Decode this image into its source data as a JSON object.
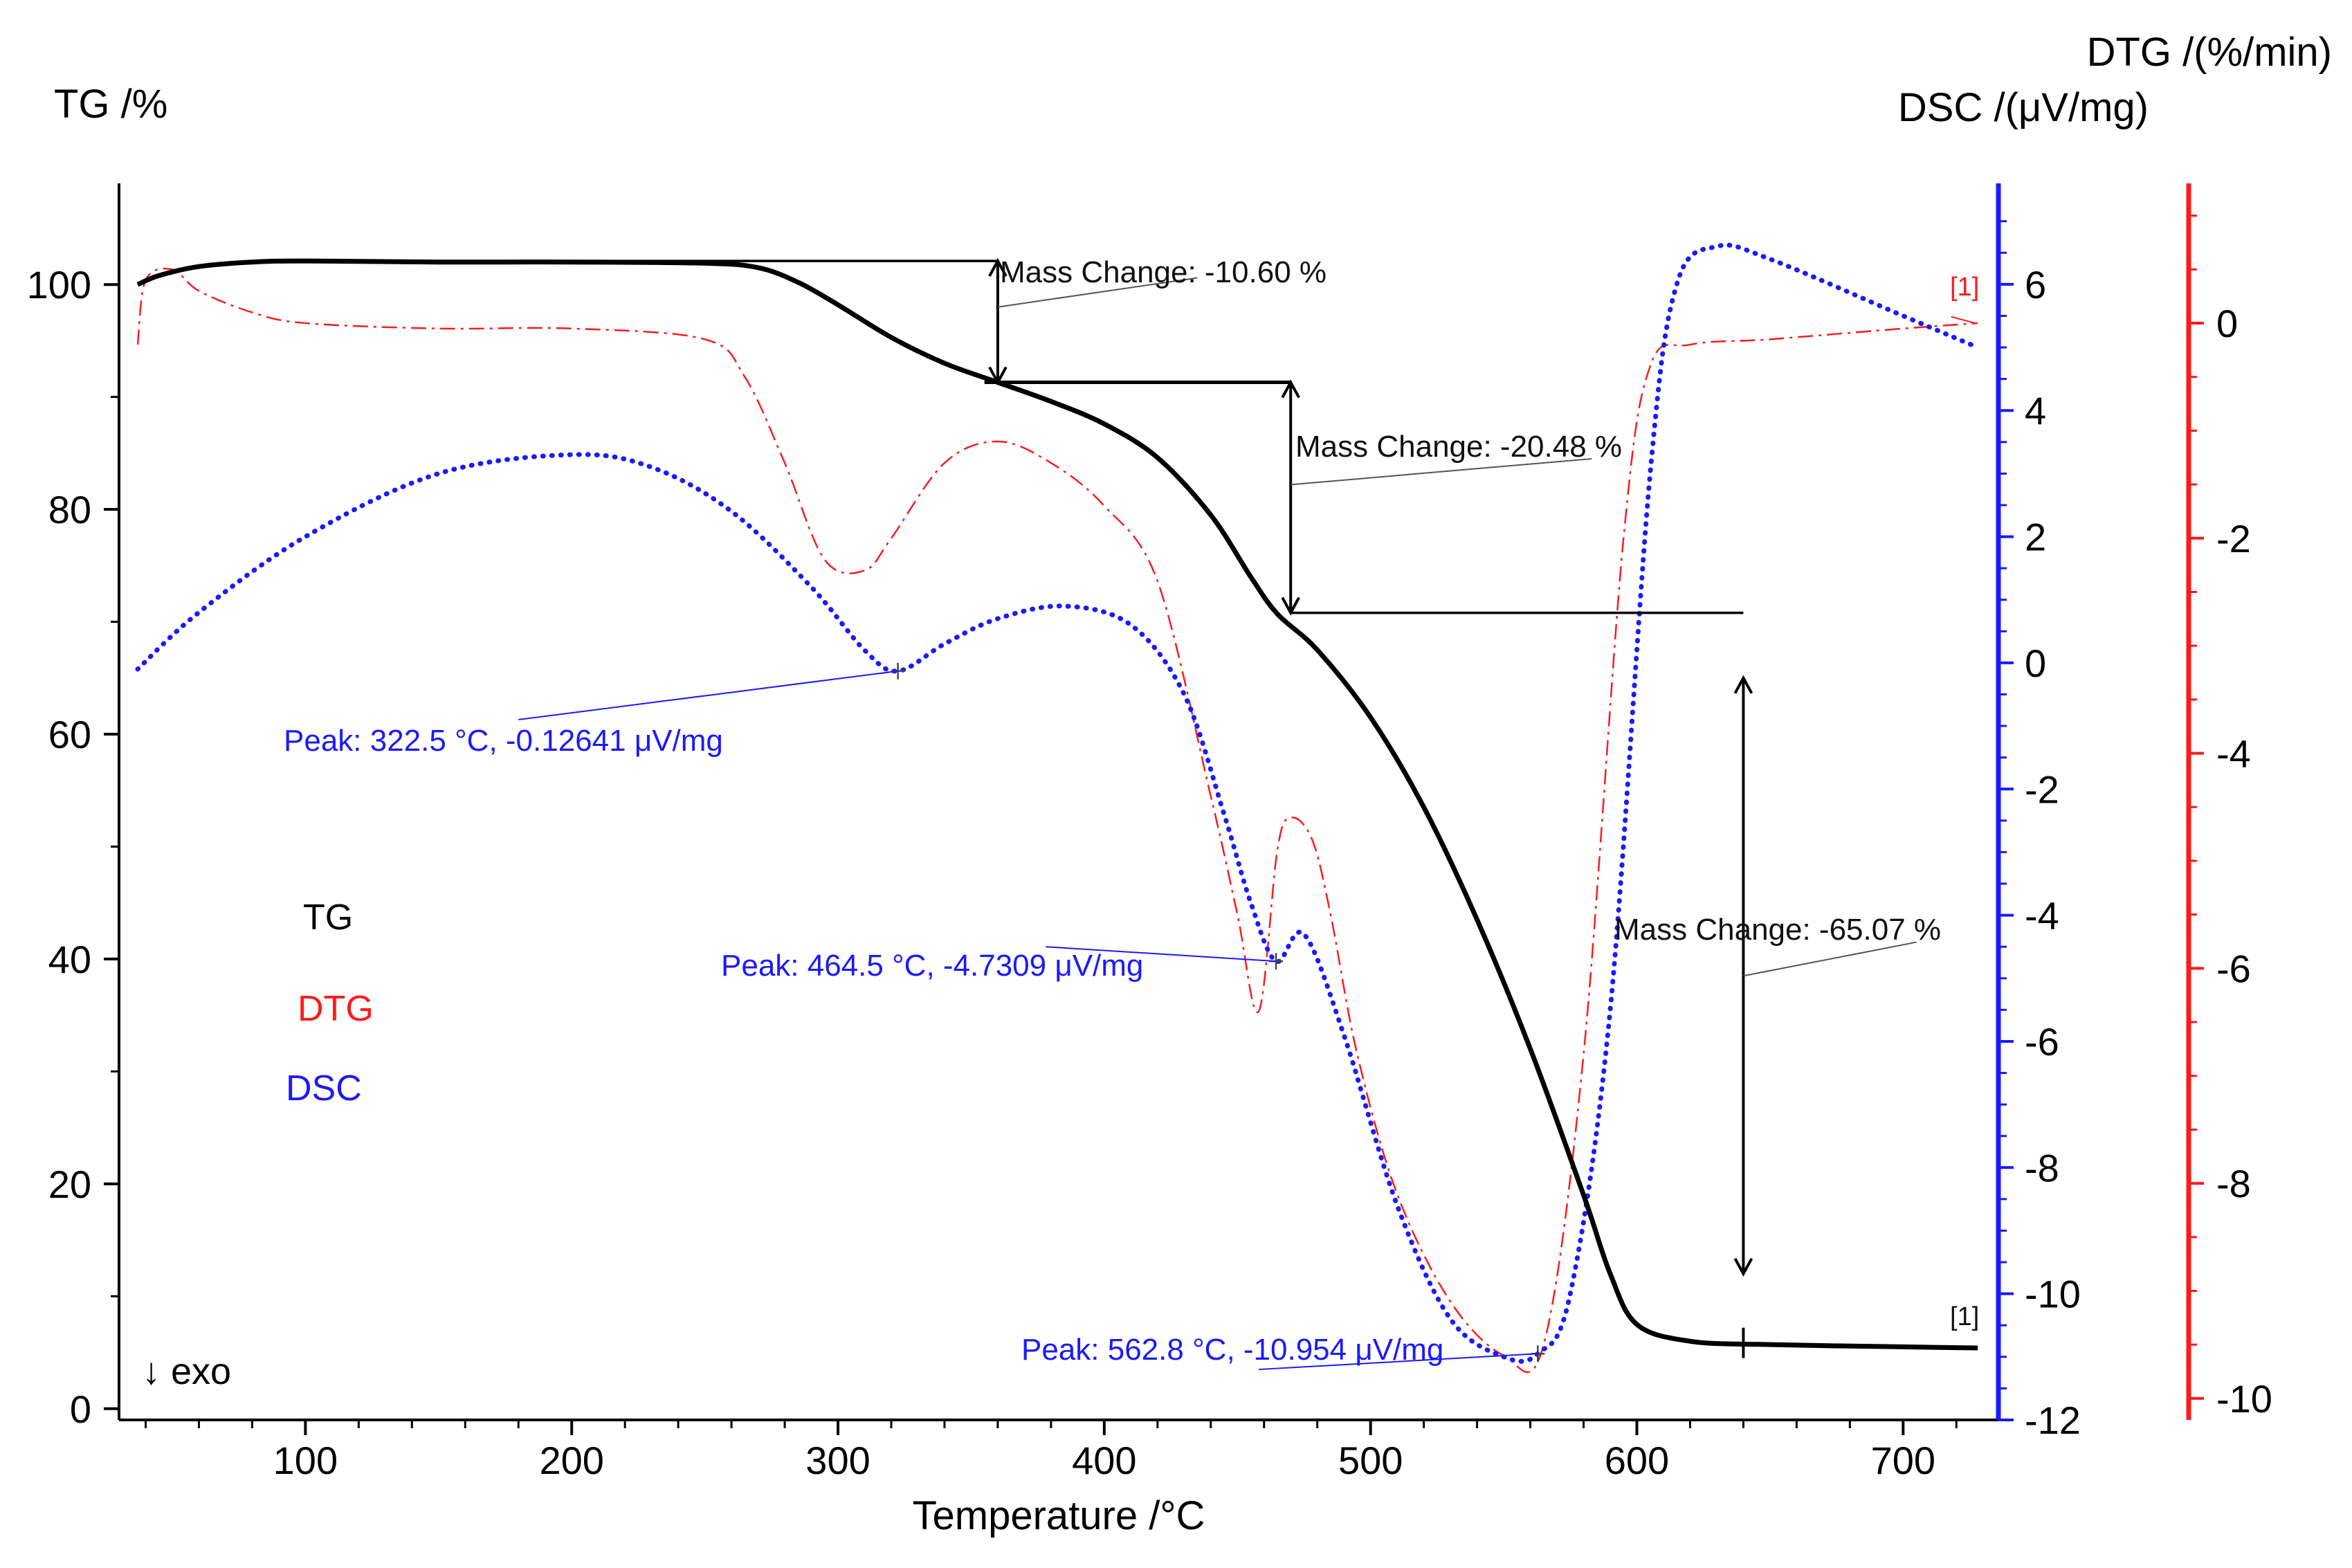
{
  "chart_data": {
    "type": "line",
    "xlabel": "Temperature /°C",
    "xlim": [
      30,
      735
    ],
    "x_ticks": [
      100,
      200,
      300,
      400,
      500,
      600,
      700
    ],
    "axes": {
      "tg": {
        "label": "TG /%",
        "range": [
          -1,
          109
        ],
        "ticks": [
          0,
          20,
          40,
          60,
          80,
          100
        ],
        "color": "#000000"
      },
      "dsc": {
        "label": "DSC /(μV/mg)",
        "range": [
          -12,
          7.6
        ],
        "ticks": [
          -12,
          -10,
          -8,
          -6,
          -4,
          -2,
          0,
          2,
          4,
          6
        ],
        "color": "#1a1aff"
      },
      "dtg": {
        "label": "DTG /(%/min)",
        "range": [
          -10.2,
          1.3
        ],
        "ticks": [
          -10,
          -8,
          -6,
          -4,
          -2,
          0
        ],
        "color": "#ff1a1a"
      }
    },
    "series": [
      {
        "name": "TG",
        "axis": "tg",
        "color": "#000000",
        "style": "solid",
        "x": [
          37,
          45,
          60,
          80,
          100,
          150,
          200,
          250,
          270,
          285,
          300,
          320,
          340,
          360,
          380,
          400,
          420,
          440,
          455,
          465,
          480,
          500,
          520,
          540,
          560,
          580,
          590,
          600,
          620,
          650,
          700,
          728
        ],
        "y": [
          100,
          100.8,
          101.6,
          102,
          102.1,
          102,
          102,
          101.9,
          101.5,
          100.2,
          98.2,
          95.3,
          93,
          91.3,
          89.6,
          87.6,
          84.6,
          79.5,
          74,
          70.7,
          67.5,
          61.5,
          53.5,
          43.5,
          32,
          19,
          12,
          7.5,
          6,
          5.7,
          5.5,
          5.4
        ]
      },
      {
        "name": "DTG",
        "axis": "dtg",
        "color": "#ff1a1a",
        "style": "dashdot",
        "x": [
          37,
          40,
          50,
          60,
          80,
          100,
          150,
          200,
          250,
          265,
          280,
          295,
          310,
          320,
          340,
          360,
          380,
          400,
          420,
          440,
          450,
          458,
          465,
          470,
          478,
          485,
          495,
          510,
          530,
          550,
          565,
          580,
          595,
          605,
          620,
          650,
          700,
          728
        ],
        "y": [
          -0.2,
          0.4,
          0.5,
          0.3,
          0.1,
          0,
          -0.05,
          -0.05,
          -0.15,
          -0.5,
          -1.3,
          -2.2,
          -2.3,
          -2.0,
          -1.3,
          -1.1,
          -1.3,
          -1.7,
          -2.4,
          -4.4,
          -5.5,
          -6.4,
          -4.9,
          -4.6,
          -4.8,
          -5.5,
          -6.8,
          -8.1,
          -9.1,
          -9.6,
          -9.5,
          -6.8,
          -2.0,
          -0.4,
          -0.2,
          -0.15,
          -0.05,
          0.0
        ]
      },
      {
        "name": "DSC",
        "axis": "dsc",
        "color": "#1a1aff",
        "style": "dotted",
        "x": [
          37,
          60,
          100,
          150,
          200,
          230,
          260,
          290,
          310,
          322.5,
          340,
          360,
          385,
          410,
          430,
          445,
          455,
          464.5,
          475,
          490,
          510,
          530,
          550,
          562.8,
          575,
          590,
          605,
          615,
          630,
          650,
          700,
          728
        ],
        "y": [
          -0.1,
          0.8,
          2.0,
          3.0,
          3.3,
          3.1,
          2.4,
          1.2,
          0.2,
          -0.13,
          0.3,
          0.7,
          0.9,
          0.6,
          -0.5,
          -2.4,
          -3.8,
          -4.73,
          -4.3,
          -5.9,
          -8.6,
          -10.4,
          -11.0,
          -10.95,
          -10.0,
          -5.5,
          3.0,
          6.0,
          6.6,
          6.4,
          5.5,
          5.0
        ]
      }
    ],
    "annotations": {
      "mass_changes": [
        "Mass Change: -10.60 %",
        "Mass Change: -20.48 %",
        "Mass Change: -65.07 %"
      ],
      "peaks": [
        "Peak: 322.5 °C, -0.12641 μV/mg",
        "Peak: 464.5 °C, -4.7309 μV/mg",
        "Peak: 562.8 °C, -10.954 μV/mg"
      ],
      "end_markers": [
        "[1]",
        "[1]"
      ],
      "exo": "↓  exo"
    },
    "legend": {
      "items": [
        "TG",
        "DTG",
        "DSC"
      ],
      "placement": "left"
    }
  }
}
